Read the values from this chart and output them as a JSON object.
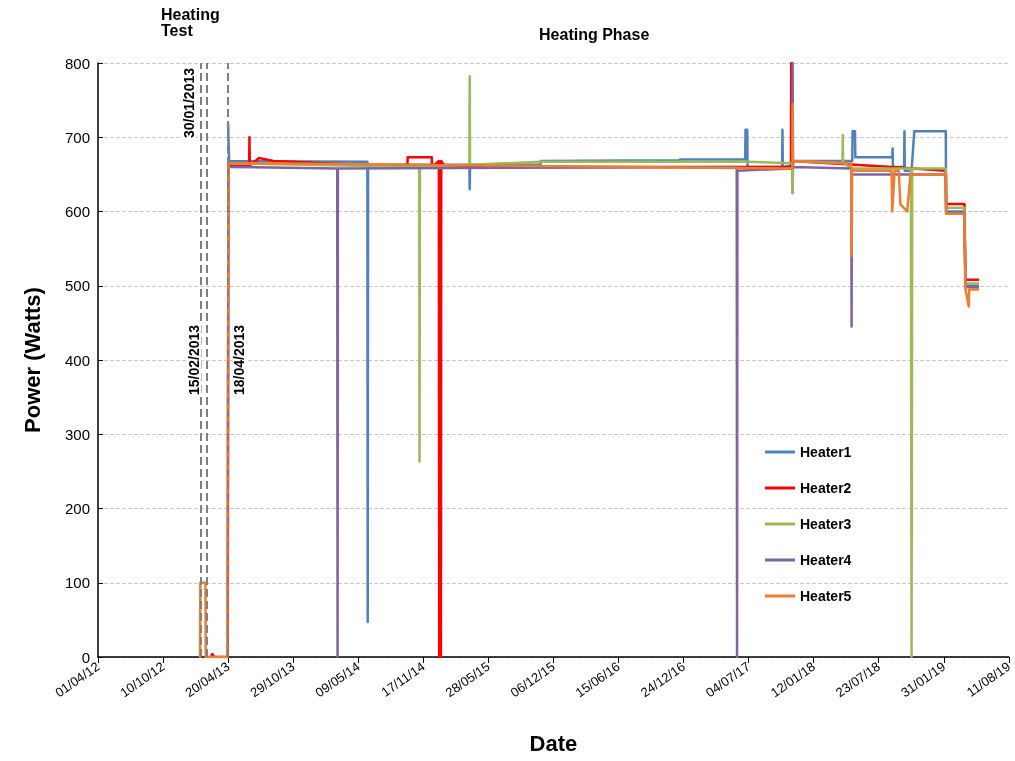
{
  "chart_data": {
    "type": "line",
    "xlabel": "Date",
    "ylabel": "Power (Watts)",
    "annotations": [
      "Heating Test",
      "Heating Phase"
    ],
    "xlim": [
      "2012-04-01",
      "2019-08-11"
    ],
    "xticks": [
      {
        "value": "2012-04-01",
        "label": "01/04/12"
      },
      {
        "value": "2012-10-10",
        "label": "10/10/12"
      },
      {
        "value": "2013-04-20",
        "label": "20/04/13"
      },
      {
        "value": "2013-10-29",
        "label": "29/10/13"
      },
      {
        "value": "2014-05-09",
        "label": "09/05/14"
      },
      {
        "value": "2014-11-17",
        "label": "17/11/14"
      },
      {
        "value": "2015-05-28",
        "label": "28/05/15"
      },
      {
        "value": "2015-12-06",
        "label": "06/12/15"
      },
      {
        "value": "2016-06-15",
        "label": "15/06/16"
      },
      {
        "value": "2016-12-24",
        "label": "24/12/16"
      },
      {
        "value": "2017-07-04",
        "label": "04/07/17"
      },
      {
        "value": "2018-01-12",
        "label": "12/01/18"
      },
      {
        "value": "2018-07-23",
        "label": "23/07/18"
      },
      {
        "value": "2019-01-31",
        "label": "31/01/19"
      },
      {
        "value": "2019-08-11",
        "label": "11/08/19"
      }
    ],
    "ylim": [
      0,
      800
    ],
    "yticks": [
      0,
      100,
      200,
      300,
      400,
      500,
      600,
      700,
      800
    ],
    "grid": "y",
    "legend": "right",
    "marker": "none",
    "line_style": "solid",
    "ref_lines": [
      {
        "axis": "x",
        "value": "2013-01-30",
        "label": "30/01/2013",
        "color": "#808080",
        "line_style": "dashed"
      },
      {
        "axis": "x",
        "value": "2013-02-15",
        "label": "15/02/2013",
        "color": "#808080",
        "line_style": "dashed"
      },
      {
        "axis": "x",
        "value": "2013-04-18",
        "label": "18/04/2013",
        "color": "#808080",
        "line_style": "dashed"
      }
    ],
    "series": [
      {
        "name": "Heater1",
        "color": "#4f81bd",
        "x": [
          "2013-04-20",
          "2013-04-23",
          "2014-06-05",
          "2014-06-06",
          "2014-06-07",
          "2015-04-02",
          "2015-04-03",
          "2015-04-04",
          "2015-10-29",
          "2015-10-30",
          "2016-12-12",
          "2016-12-13",
          "2017-06-24",
          "2017-06-25",
          "2017-06-30",
          "2017-07-01",
          "2017-10-11",
          "2017-10-12",
          "2017-10-13",
          "2017-11-10",
          "2017-11-11",
          "2017-11-12",
          "2018-05-06",
          "2018-05-07",
          "2018-05-14",
          "2018-05-15",
          "2018-09-01",
          "2018-09-02",
          "2018-09-03",
          "2018-10-06",
          "2018-10-07",
          "2018-10-08",
          "2018-10-28",
          "2018-11-05",
          "2019-02-06",
          "2019-02-07",
          "2019-04-02",
          "2019-04-05",
          "2019-05-12"
        ],
        "values": [
          718,
          668,
          667,
          47,
          663,
          663,
          630,
          663,
          663,
          668,
          669,
          670,
          670,
          710,
          710,
          660,
          660,
          710,
          660,
          662,
          625,
          668,
          668,
          708,
          708,
          673,
          673,
          685,
          660,
          660,
          708,
          655,
          655,
          708,
          708,
          600,
          600,
          500,
          500
        ]
      },
      {
        "name": "Heater2",
        "color": "#ff0000",
        "x": [
          "2013-03-01",
          "2013-03-04",
          "2013-03-10",
          "2013-04-19",
          "2013-04-21",
          "2013-06-21",
          "2013-06-22",
          "2013-06-23",
          "2013-07-20",
          "2013-09-01",
          "2014-10-01",
          "2014-10-02",
          "2014-12-12",
          "2014-12-13",
          "2015-01-02",
          "2015-01-03",
          "2015-01-08",
          "2015-01-09",
          "2015-01-20",
          "2017-11-06",
          "2017-11-07",
          "2017-11-08",
          "2018-09-01",
          "2019-02-06",
          "2019-02-07",
          "2019-04-02",
          "2019-04-05",
          "2019-05-12"
        ],
        "values": [
          0,
          4,
          0,
          0,
          662,
          662,
          700,
          662,
          672,
          668,
          660,
          673,
          673,
          660,
          668,
          0,
          0,
          668,
          660,
          660,
          800,
          668,
          660,
          655,
          610,
          610,
          508,
          508
        ]
      },
      {
        "name": "Heater3",
        "color": "#9bbb59",
        "x": [
          "2013-04-21",
          "2014-11-05",
          "2014-11-06",
          "2014-11-07",
          "2015-04-02",
          "2015-04-03",
          "2015-04-04",
          "2015-10-30",
          "2017-06-30",
          "2017-11-10",
          "2017-11-11",
          "2017-11-12",
          "2018-04-07",
          "2018-04-08",
          "2018-04-09",
          "2018-05-06",
          "2018-10-26",
          "2018-10-28",
          "2018-10-30",
          "2019-02-06",
          "2019-02-07",
          "2019-04-02",
          "2019-04-05",
          "2019-05-12"
        ],
        "values": [
          665,
          660,
          263,
          660,
          663,
          782,
          663,
          667,
          667,
          665,
          625,
          668,
          665,
          703,
          665,
          658,
          658,
          0,
          658,
          658,
          605,
          605,
          503,
          503
        ]
      },
      {
        "name": "Heater4",
        "color": "#8064a2",
        "x": [
          "2013-04-21",
          "2014-03-08",
          "2014-03-09",
          "2014-03-10",
          "2017-05-30",
          "2017-05-31",
          "2017-06-01",
          "2017-11-10",
          "2017-11-11",
          "2017-11-12",
          "2018-05-03",
          "2018-05-04",
          "2018-05-05",
          "2019-02-06",
          "2019-02-07",
          "2019-04-02",
          "2019-04-05",
          "2019-05-12"
        ],
        "values": [
          660,
          658,
          0,
          658,
          660,
          0,
          655,
          658,
          800,
          660,
          658,
          445,
          650,
          650,
          598,
          598,
          498,
          498
        ]
      },
      {
        "name": "Heater5",
        "color": "#ed7d31",
        "x": [
          "2013-01-27",
          "2013-01-28",
          "2013-02-12",
          "2013-02-13",
          "2013-04-18",
          "2013-04-19",
          "2013-04-20",
          "2013-04-21",
          "2013-07-15",
          "2017-11-10",
          "2017-11-11",
          "2017-11-12",
          "2018-05-03",
          "2018-05-04",
          "2018-05-05",
          "2018-08-30",
          "2018-09-01",
          "2018-09-08",
          "2018-09-20",
          "2018-09-25",
          "2018-10-15",
          "2018-10-25",
          "2019-02-06",
          "2019-02-07",
          "2019-04-02",
          "2019-04-05",
          "2019-04-15",
          "2019-04-16",
          "2019-05-12"
        ],
        "values": [
          0,
          100,
          100,
          0,
          0,
          307,
          475,
          665,
          665,
          658,
          745,
          668,
          665,
          540,
          655,
          655,
          600,
          655,
          655,
          610,
          600,
          650,
          650,
          597,
          597,
          495,
          472,
          495,
          495
        ]
      }
    ]
  }
}
